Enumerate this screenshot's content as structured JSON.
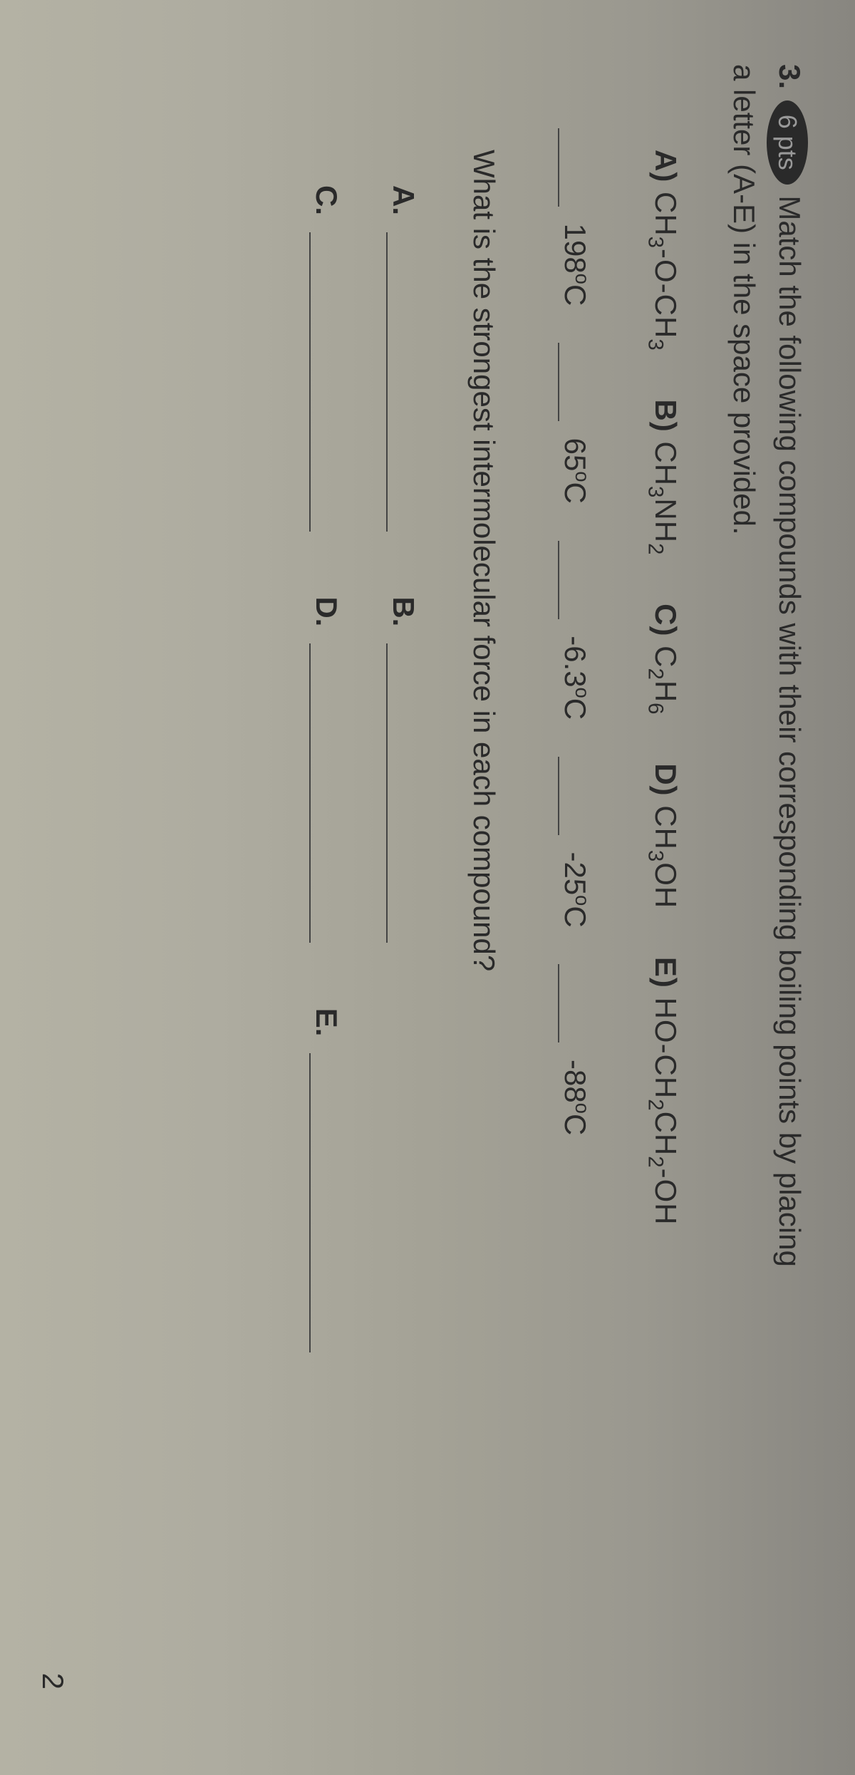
{
  "question": {
    "number": "3.",
    "points_label": "6 pts",
    "intro_text_1": "Match the following compounds with their corresponding boiling points by placing",
    "intro_text_2": "a letter (A-E) in the space provided."
  },
  "compounds": [
    {
      "label": "A)",
      "formula_html": "CH<sub>3</sub>-O-CH<sub>3</sub>"
    },
    {
      "label": "B)",
      "formula_html": "CH<sub>3</sub>NH<sub>2</sub>"
    },
    {
      "label": "C)",
      "formula_html": "C<sub>2</sub>H<sub>6</sub>"
    },
    {
      "label": "D)",
      "formula_html": "CH<sub>3</sub>OH"
    },
    {
      "label": "E)",
      "formula_html": "HO-CH<sub>2</sub>CH<sub>2</sub>-OH"
    }
  ],
  "temperatures": [
    {
      "value": "198",
      "unit_html": "<span class=\"sup-o\">o</span>C"
    },
    {
      "value": "65",
      "unit_html": "<span class=\"sup-o\">o</span>C"
    },
    {
      "value": "-6.3",
      "unit_html": "<span class=\"sup-o\">o</span>C"
    },
    {
      "value": "-25",
      "unit_html": "<span class=\"sup-o\">o</span>C"
    },
    {
      "value": "-88",
      "unit_html": "<span class=\"sup-o\">o</span>C"
    }
  ],
  "sub_question": "What is the strongest intermolecular force in each compound?",
  "answer_labels": {
    "a": "A.",
    "b": "B.",
    "c": "C.",
    "d": "D.",
    "e": "E."
  },
  "page_number": "2",
  "colors": {
    "text": "#2a2a2a",
    "underline": "#444444",
    "bg_top": "#888680",
    "bg_bottom": "#b4b2a4"
  },
  "typography": {
    "body_fontsize_pt": 32,
    "font_family": "Arial"
  }
}
